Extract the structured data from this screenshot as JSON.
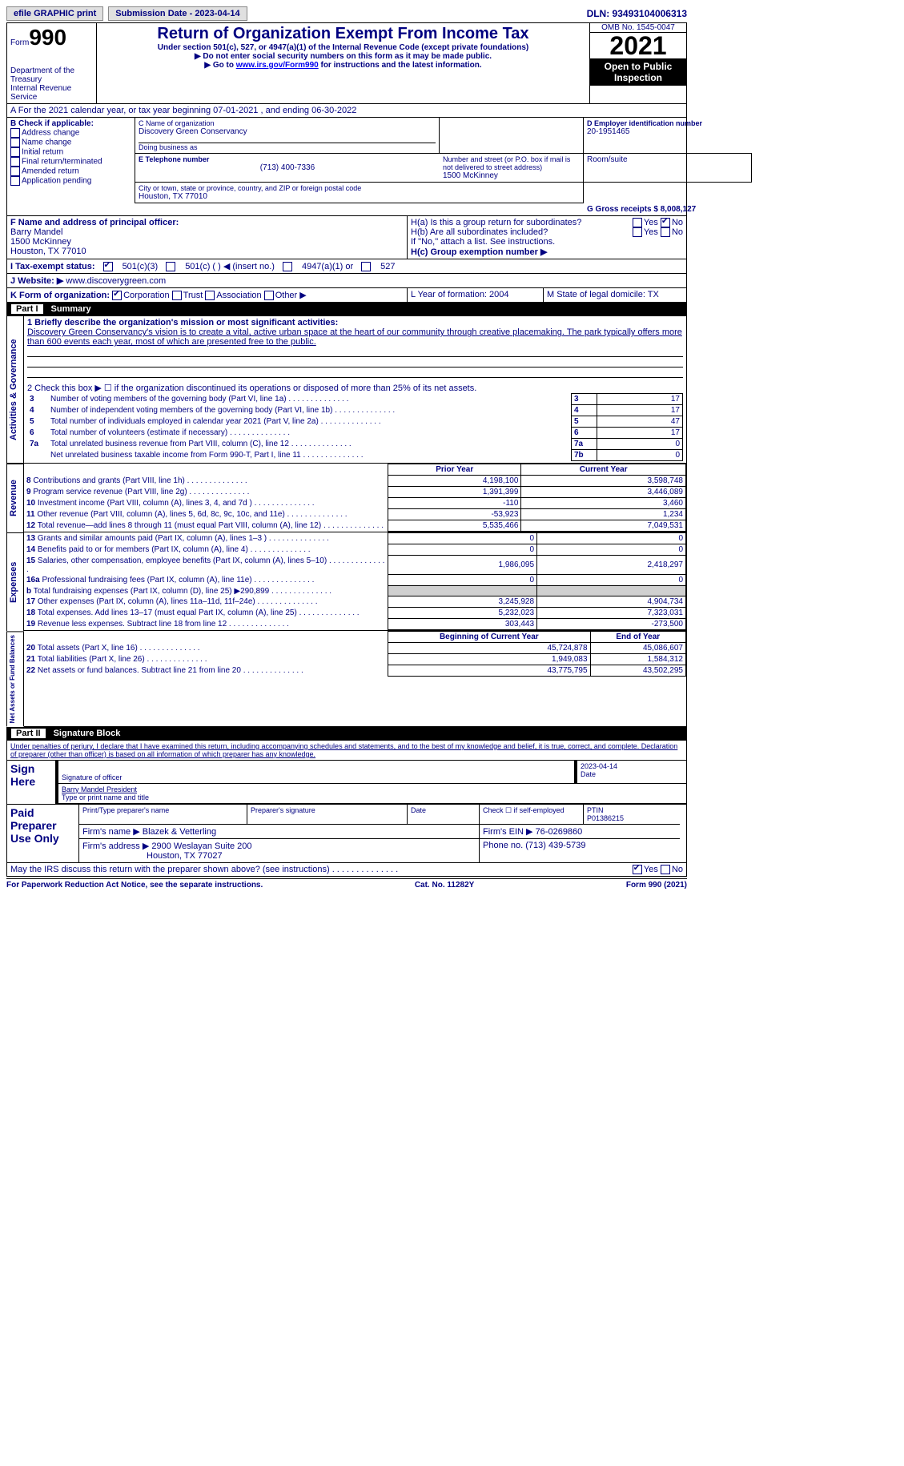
{
  "topbar": {
    "efile_label": "efile GRAPHIC print",
    "submission_label": "Submission Date - 2023-04-14",
    "dln_label": "DLN: 93493104006313"
  },
  "header": {
    "form_prefix": "Form",
    "form_number": "990",
    "title": "Return of Organization Exempt From Income Tax",
    "subtitle1": "Under section 501(c), 527, or 4947(a)(1) of the Internal Revenue Code (except private foundations)",
    "subtitle2": "▶ Do not enter social security numbers on this form as it may be made public.",
    "subtitle3_prefix": "▶ Go to ",
    "subtitle3_link": "www.irs.gov/Form990",
    "subtitle3_suffix": " for instructions and the latest information.",
    "dept": "Department of the Treasury",
    "irs": "Internal Revenue Service",
    "omb": "OMB No. 1545-0047",
    "year": "2021",
    "otp": "Open to Public Inspection"
  },
  "sectionA": {
    "a_line": "A For the 2021 calendar year, or tax year beginning 07-01-2021   , and ending 06-30-2022",
    "b_label": "B Check if applicable:",
    "b_opts": [
      "Address change",
      "Name change",
      "Initial return",
      "Final return/terminated",
      "Amended return",
      "Application pending"
    ],
    "c_label": "C Name of organization",
    "c_name": "Discovery Green Conservancy",
    "dba_label": "Doing business as",
    "addr_label": "Number and street (or P.O. box if mail is not delivered to street address)",
    "room_label": "Room/suite",
    "addr": "1500 McKinney",
    "city_label": "City or town, state or province, country, and ZIP or foreign postal code",
    "city": "Houston, TX  77010",
    "d_label": "D Employer identification number",
    "d_ein": "20-1951465",
    "e_label": "E Telephone number",
    "e_phone": "(713) 400-7336",
    "g_label": "G Gross receipts $ 8,008,127",
    "f_label": "F  Name and address of principal officer:",
    "f_name": "Barry Mandel",
    "f_addr1": "1500 McKinney",
    "f_addr2": "Houston, TX  77010",
    "ha_label": "H(a)  Is this a group return for subordinates?",
    "hb_label": "H(b)  Are all subordinates included?",
    "hb_note": "If \"No,\" attach a list. See instructions.",
    "hc_label": "H(c)  Group exemption number ▶",
    "yes": "Yes",
    "no": "No",
    "i_label": "I  Tax-exempt status:",
    "i_501c3": "501(c)(3)",
    "i_501c": "501(c) (   ) ◀ (insert no.)",
    "i_4947": "4947(a)(1) or",
    "i_527": "527",
    "j_label": "J  Website: ▶",
    "j_url": "www.discoverygreen.com",
    "k_label": "K Form of organization:",
    "k_opts": [
      "Corporation",
      "Trust",
      "Association",
      "Other ▶"
    ],
    "l_label": "L Year of formation: 2004",
    "m_label": "M State of legal domicile: TX"
  },
  "part1": {
    "hdr_part": "Part I",
    "hdr_title": "Summary",
    "side_ag": "Activities & Governance",
    "side_rev": "Revenue",
    "side_exp": "Expenses",
    "side_na": "Net Assets or Fund Balances",
    "l1_label": "1  Briefly describe the organization's mission or most significant activities:",
    "l1_text": "Discovery Green Conservancy's vision is to create a vital, active urban space at the heart of our community through creative placemaking. The park typically offers more than 600 events each year, most of which are presented free to the public.",
    "l2": "2   Check this box ▶ ☐  if the organization discontinued its operations or disposed of more than 25% of its net assets.",
    "lines_gov": [
      {
        "n": "3",
        "t": "Number of voting members of the governing body (Part VI, line 1a)",
        "rn": "3",
        "v": "17"
      },
      {
        "n": "4",
        "t": "Number of independent voting members of the governing body (Part VI, line 1b)",
        "rn": "4",
        "v": "17"
      },
      {
        "n": "5",
        "t": "Total number of individuals employed in calendar year 2021 (Part V, line 2a)",
        "rn": "5",
        "v": "47"
      },
      {
        "n": "6",
        "t": "Total number of volunteers (estimate if necessary)",
        "rn": "6",
        "v": "17"
      },
      {
        "n": "7a",
        "t": "Total unrelated business revenue from Part VIII, column (C), line 12",
        "rn": "7a",
        "v": "0"
      },
      {
        "n": "",
        "t": "Net unrelated business taxable income from Form 990-T, Part I, line 11",
        "rn": "7b",
        "v": "0"
      }
    ],
    "col_prior": "Prior Year",
    "col_current": "Current Year",
    "lines_rev": [
      {
        "n": "8",
        "t": "Contributions and grants (Part VIII, line 1h)",
        "p": "4,198,100",
        "c": "3,598,748"
      },
      {
        "n": "9",
        "t": "Program service revenue (Part VIII, line 2g)",
        "p": "1,391,399",
        "c": "3,446,089"
      },
      {
        "n": "10",
        "t": "Investment income (Part VIII, column (A), lines 3, 4, and 7d )",
        "p": "-110",
        "c": "3,460"
      },
      {
        "n": "11",
        "t": "Other revenue (Part VIII, column (A), lines 5, 6d, 8c, 9c, 10c, and 11e)",
        "p": "-53,923",
        "c": "1,234"
      },
      {
        "n": "12",
        "t": "Total revenue—add lines 8 through 11 (must equal Part VIII, column (A), line 12)",
        "p": "5,535,466",
        "c": "7,049,531"
      }
    ],
    "lines_exp": [
      {
        "n": "13",
        "t": "Grants and similar amounts paid (Part IX, column (A), lines 1–3 )",
        "p": "0",
        "c": "0"
      },
      {
        "n": "14",
        "t": "Benefits paid to or for members (Part IX, column (A), line 4)",
        "p": "0",
        "c": "0"
      },
      {
        "n": "15",
        "t": "Salaries, other compensation, employee benefits (Part IX, column (A), lines 5–10)",
        "p": "1,986,095",
        "c": "2,418,297"
      },
      {
        "n": "16a",
        "t": "Professional fundraising fees (Part IX, column (A), line 11e)",
        "p": "0",
        "c": "0"
      },
      {
        "n": "b",
        "t": "Total fundraising expenses (Part IX, column (D), line 25) ▶290,899",
        "p": "gray",
        "c": "gray"
      },
      {
        "n": "17",
        "t": "Other expenses (Part IX, column (A), lines 11a–11d, 11f–24e)",
        "p": "3,245,928",
        "c": "4,904,734"
      },
      {
        "n": "18",
        "t": "Total expenses. Add lines 13–17 (must equal Part IX, column (A), line 25)",
        "p": "5,232,023",
        "c": "7,323,031"
      },
      {
        "n": "19",
        "t": "Revenue less expenses. Subtract line 18 from line 12",
        "p": "303,443",
        "c": "-273,500"
      }
    ],
    "col_boy": "Beginning of Current Year",
    "col_eoy": "End of Year",
    "lines_na": [
      {
        "n": "20",
        "t": "Total assets (Part X, line 16)",
        "p": "45,724,878",
        "c": "45,086,607"
      },
      {
        "n": "21",
        "t": "Total liabilities (Part X, line 26)",
        "p": "1,949,083",
        "c": "1,584,312"
      },
      {
        "n": "22",
        "t": "Net assets or fund balances. Subtract line 21 from line 20",
        "p": "43,775,795",
        "c": "43,502,295"
      }
    ]
  },
  "part2": {
    "hdr_part": "Part II",
    "hdr_title": "Signature Block",
    "perjury": "Under penalties of perjury, I declare that I have examined this return, including accompanying schedules and statements, and to the best of my knowledge and belief, it is true, correct, and complete. Declaration of preparer (other than officer) is based on all information of which preparer has any knowledge.",
    "sign_here": "Sign Here",
    "sig_officer": "Signature of officer",
    "sig_date": "2023-04-14",
    "date_lbl": "Date",
    "officer_name": "Barry Mandel  President",
    "type_name": "Type or print name and title",
    "paid": "Paid Preparer Use Only",
    "prep_name_lbl": "Print/Type preparer's name",
    "prep_sig_lbl": "Preparer's signature",
    "check_if": "Check ☐ if self-employed",
    "ptin_lbl": "PTIN",
    "ptin": "P01386215",
    "firm_name_lbl": "Firm's name   ▶",
    "firm_name": "Blazek & Vetterling",
    "firm_ein_lbl": "Firm's EIN ▶",
    "firm_ein": "76-0269860",
    "firm_addr_lbl": "Firm's address ▶",
    "firm_addr1": "2900 Weslayan Suite 200",
    "firm_addr2": "Houston, TX  77027",
    "phone_lbl": "Phone no.",
    "phone": "(713) 439-5739",
    "discuss": "May the IRS discuss this return with the preparer shown above? (see instructions)"
  },
  "footer": {
    "left": "For Paperwork Reduction Act Notice, see the separate instructions.",
    "mid": "Cat. No. 11282Y",
    "right": "Form 990 (2021)"
  }
}
